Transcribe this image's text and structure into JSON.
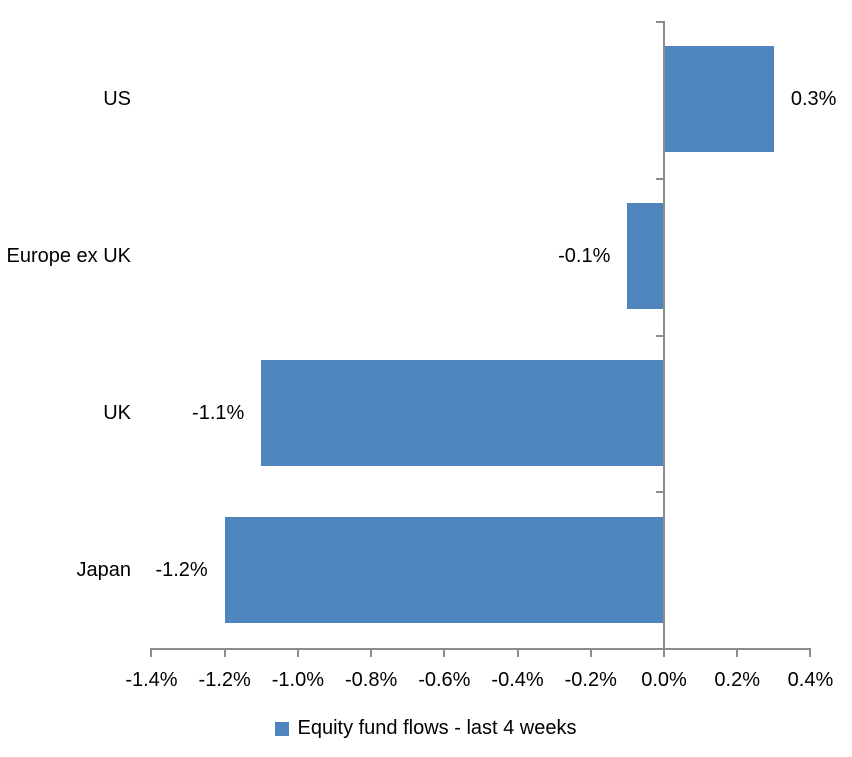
{
  "chart_data": {
    "type": "bar",
    "orientation": "horizontal",
    "title": "",
    "xlabel": "",
    "ylabel": "",
    "categories": [
      "US",
      "Europe ex UK",
      "UK",
      "Japan"
    ],
    "series": [
      {
        "name": "Equity fund flows - last 4 weeks",
        "values": [
          0.3,
          -0.1,
          -1.1,
          -1.2
        ],
        "data_labels": [
          "0.3%",
          "-0.1%",
          "-1.1%",
          "-1.2%"
        ],
        "color": "#4E85BD"
      }
    ],
    "xlim": [
      -1.4,
      0.4
    ],
    "x_tick_labels": [
      "-1.4%",
      "-1.2%",
      "-1.0%",
      "-0.8%",
      "-0.6%",
      "-0.4%",
      "-0.2%",
      "0.0%",
      "0.2%",
      "0.4%"
    ],
    "unit": "%",
    "grid": false,
    "legend_position": "bottom",
    "colors": {
      "bar": "#4E85BD",
      "axis": "#8C8C8C",
      "text": "#000000",
      "background": "#FFFFFF"
    }
  },
  "legend": {
    "label": "Equity fund flows - last 4 weeks"
  }
}
